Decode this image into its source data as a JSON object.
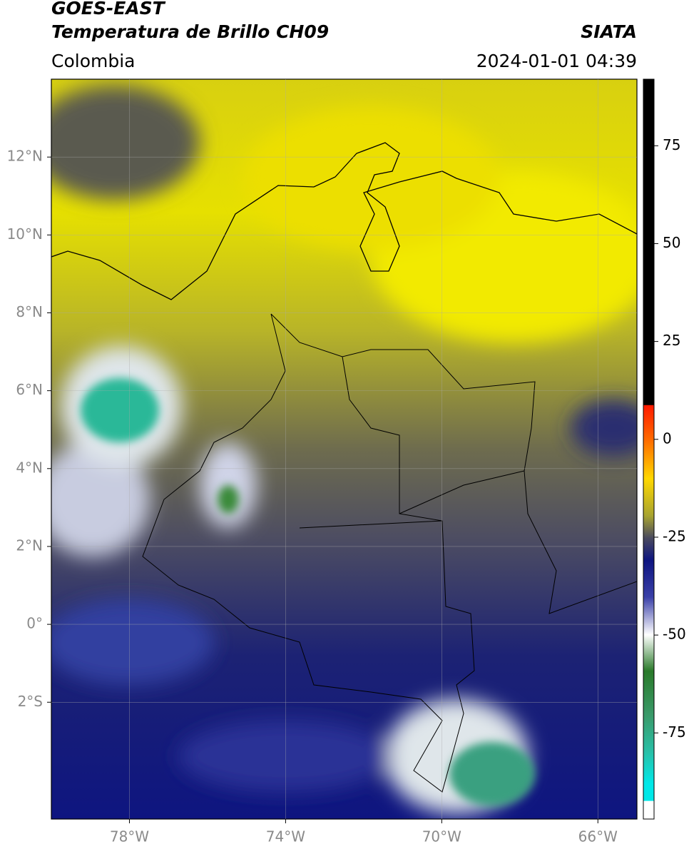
{
  "header": {
    "title": "GOES-EAST",
    "subtitle": "Temperatura de Brillo CH09",
    "source": "SIATA",
    "region": "Colombia",
    "datetime": "2024-01-01 04:39"
  },
  "map": {
    "xlim": [
      -80,
      -65
    ],
    "ylim": [
      -5,
      14
    ],
    "xticks": [
      {
        "value": -78,
        "label": "78°W"
      },
      {
        "value": -74,
        "label": "74°W"
      },
      {
        "value": -70,
        "label": "70°W"
      },
      {
        "value": -66,
        "label": "66°W"
      }
    ],
    "yticks": [
      {
        "value": 12,
        "label": "12°N"
      },
      {
        "value": 10,
        "label": "10°N"
      },
      {
        "value": 8,
        "label": "8°N"
      },
      {
        "value": 6,
        "label": "6°N"
      },
      {
        "value": 4,
        "label": "4°N"
      },
      {
        "value": 2,
        "label": "2°N"
      },
      {
        "value": 0,
        "label": "0°"
      },
      {
        "value": -2,
        "label": "2°S"
      }
    ]
  },
  "colorbar": {
    "lim": [
      -97,
      92
    ],
    "ticks": [
      75,
      50,
      25,
      0,
      -25,
      -50,
      -75
    ]
  }
}
